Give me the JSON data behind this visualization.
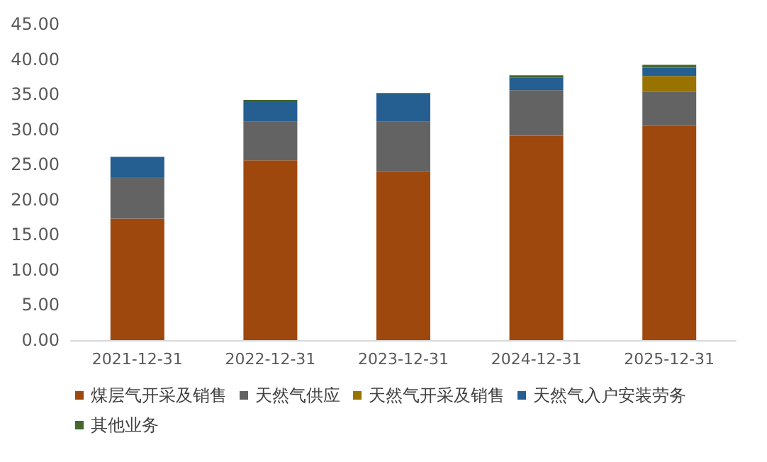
{
  "chart_data": {
    "type": "bar",
    "stacked": true,
    "grid": false,
    "legend": "bottom",
    "categories": [
      "2021-12-31",
      "2022-12-31",
      "2023-12-31",
      "2024-12-31",
      "2025-12-31"
    ],
    "series": [
      {
        "name": "煤层气开采及销售",
        "color": "#9e480e",
        "values": [
          17.3,
          25.6,
          24.0,
          29.1,
          30.5
        ]
      },
      {
        "name": "天然气供应",
        "color": "#636363",
        "values": [
          5.9,
          5.5,
          7.1,
          6.5,
          4.9
        ]
      },
      {
        "name": "天然气开采及销售",
        "color": "#997300",
        "values": [
          0,
          0,
          0,
          0,
          2.2
        ]
      },
      {
        "name": "天然气入户安装劳务",
        "color": "#255e91",
        "values": [
          2.9,
          2.9,
          3.9,
          1.8,
          1.2
        ]
      },
      {
        "name": "其他业务",
        "color": "#43682b",
        "values": [
          0,
          0.2,
          0.2,
          0.3,
          0.4
        ]
      }
    ],
    "ylim": [
      0,
      45
    ],
    "yticks": [
      {
        "value": 0,
        "label": "0.00"
      },
      {
        "value": 5,
        "label": "5.00"
      },
      {
        "value": 10,
        "label": "10.00"
      },
      {
        "value": 15,
        "label": "15.00"
      },
      {
        "value": 20,
        "label": "20.00"
      },
      {
        "value": 25,
        "label": "25.00"
      },
      {
        "value": 30,
        "label": "30.00"
      },
      {
        "value": 35,
        "label": "35.00"
      },
      {
        "value": 40,
        "label": "40.00"
      },
      {
        "value": 45,
        "label": "45.00"
      }
    ]
  }
}
